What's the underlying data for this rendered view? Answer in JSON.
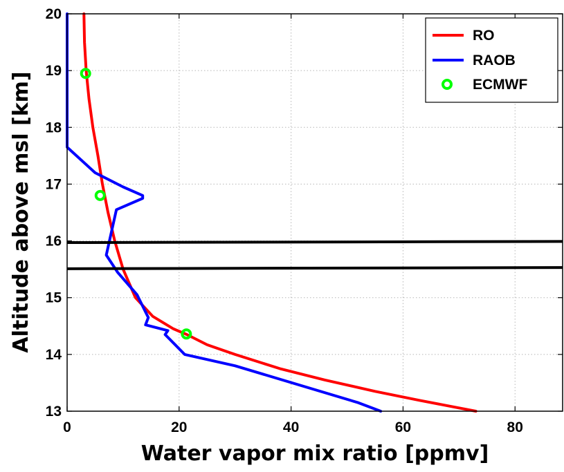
{
  "chart_data": {
    "type": "line",
    "title": "",
    "xlabel": "Water vapor mix ratio [ppmv]",
    "ylabel": "Altitude above msl [km]",
    "xlim": [
      0,
      88.5
    ],
    "ylim": [
      13,
      20
    ],
    "xticks": [
      "0",
      "20",
      "40",
      "60",
      "80"
    ],
    "yticks": [
      "13",
      "14",
      "15",
      "16",
      "17",
      "18",
      "19",
      "20"
    ],
    "grid": true,
    "legend_position": "top-right",
    "series": [
      {
        "name": "RO",
        "kind": "line",
        "color": "#ff0000",
        "points": [
          [
            3.0,
            20.0
          ],
          [
            3.1,
            19.5
          ],
          [
            3.4,
            19.0
          ],
          [
            3.9,
            18.5
          ],
          [
            4.6,
            18.0
          ],
          [
            5.5,
            17.5
          ],
          [
            6.3,
            17.0
          ],
          [
            7.3,
            16.5
          ],
          [
            8.5,
            16.0
          ],
          [
            10.0,
            15.5
          ],
          [
            12.2,
            15.0
          ],
          [
            15.3,
            14.67
          ],
          [
            19.0,
            14.45
          ],
          [
            21.4,
            14.35
          ],
          [
            25.0,
            14.17
          ],
          [
            30.0,
            14.0
          ],
          [
            38.0,
            13.75
          ],
          [
            46.0,
            13.55
          ],
          [
            55.0,
            13.35
          ],
          [
            63.0,
            13.19
          ],
          [
            73.0,
            13.0
          ]
        ]
      },
      {
        "name": "RAOB",
        "kind": "line",
        "color": "#0000ff",
        "points": [
          [
            0.0,
            20.0
          ],
          [
            0.0,
            17.65
          ],
          [
            5.0,
            17.2
          ],
          [
            10.0,
            16.95
          ],
          [
            13.5,
            16.8
          ],
          [
            13.5,
            16.75
          ],
          [
            8.8,
            16.55
          ],
          [
            7.0,
            15.75
          ],
          [
            9.0,
            15.45
          ],
          [
            12.5,
            15.05
          ],
          [
            14.5,
            14.65
          ],
          [
            14.0,
            14.52
          ],
          [
            18.0,
            14.42
          ],
          [
            17.5,
            14.35
          ],
          [
            21.0,
            14.0
          ],
          [
            30.0,
            13.8
          ],
          [
            52.0,
            13.15
          ],
          [
            56.0,
            13.0
          ]
        ]
      },
      {
        "name": "ECMWF",
        "kind": "markers",
        "color": "#00ff00",
        "points": [
          [
            3.3,
            18.95
          ],
          [
            5.9,
            16.8
          ],
          [
            21.3,
            14.36
          ]
        ]
      }
    ],
    "reference_lines": [
      {
        "y0": 15.97,
        "y1": 15.99,
        "color": "#000000"
      },
      {
        "y0": 15.51,
        "y1": 15.53,
        "color": "#000000"
      }
    ]
  }
}
